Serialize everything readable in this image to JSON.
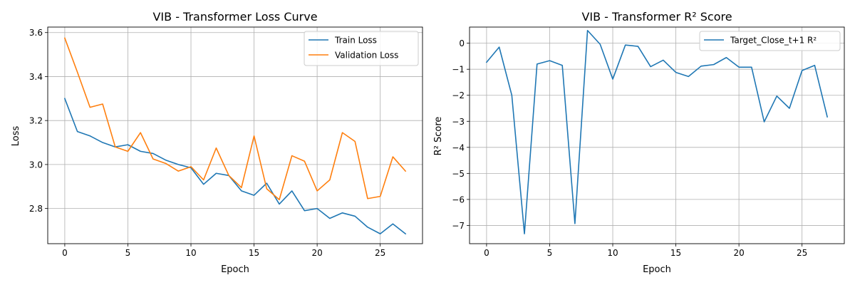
{
  "chart_data": [
    {
      "type": "line",
      "title": "VIB - Transformer Loss Curve",
      "xlabel": "Epoch",
      "ylabel": "Loss",
      "xlim": [
        -1.35,
        28.35
      ],
      "ylim": [
        2.64,
        3.625
      ],
      "xticks": [
        0,
        5,
        10,
        15,
        20,
        25
      ],
      "xtick_labels": [
        "0",
        "5",
        "10",
        "15",
        "20",
        "25"
      ],
      "yticks": [
        2.8,
        3.0,
        3.2,
        3.4,
        3.6
      ],
      "ytick_labels": [
        "2.8",
        "3.0",
        "3.2",
        "3.4",
        "3.6"
      ],
      "grid": true,
      "legend_position": "upper right",
      "x": [
        0,
        1,
        2,
        3,
        4,
        5,
        6,
        7,
        8,
        9,
        10,
        11,
        12,
        13,
        14,
        15,
        16,
        17,
        18,
        19,
        20,
        21,
        22,
        23,
        24,
        25,
        26,
        27
      ],
      "series": [
        {
          "name": "Train Loss",
          "color": "#1f77b4",
          "values": [
            3.3,
            3.15,
            3.13,
            3.1,
            3.08,
            3.09,
            3.06,
            3.05,
            3.02,
            3.0,
            2.985,
            2.91,
            2.96,
            2.95,
            2.88,
            2.86,
            2.915,
            2.82,
            2.88,
            2.79,
            2.8,
            2.755,
            2.78,
            2.765,
            2.715,
            2.685,
            2.73,
            2.685
          ]
        },
        {
          "name": "Validation Loss",
          "color": "#ff7f0e",
          "values": [
            3.575,
            3.42,
            3.26,
            3.275,
            3.08,
            3.06,
            3.145,
            3.025,
            3.005,
            2.97,
            2.99,
            2.93,
            3.075,
            2.95,
            2.895,
            3.13,
            2.89,
            2.84,
            3.04,
            3.015,
            2.88,
            2.93,
            3.145,
            3.105,
            2.845,
            2.855,
            3.035,
            2.97
          ]
        }
      ]
    },
    {
      "type": "line",
      "title": "VIB - Transformer R² Score",
      "xlabel": "Epoch",
      "ylabel": "R² Score",
      "xlim": [
        -1.35,
        28.35
      ],
      "ylim": [
        -7.7,
        0.62
      ],
      "xticks": [
        0,
        5,
        10,
        15,
        20,
        25
      ],
      "xtick_labels": [
        "0",
        "5",
        "10",
        "15",
        "20",
        "25"
      ],
      "yticks": [
        0,
        -1,
        -2,
        -3,
        -4,
        -5,
        -6,
        -7
      ],
      "ytick_labels": [
        "0",
        "−1",
        "−2",
        "−3",
        "−4",
        "−5",
        "−6",
        "−7"
      ],
      "grid": true,
      "legend_position": "upper right",
      "x": [
        0,
        1,
        2,
        3,
        4,
        5,
        6,
        7,
        8,
        9,
        10,
        11,
        12,
        13,
        14,
        15,
        16,
        17,
        18,
        19,
        20,
        21,
        22,
        23,
        24,
        25,
        26,
        27
      ],
      "series": [
        {
          "name": "Target_Close_t+1 R²",
          "color": "#1f77b4",
          "values": [
            -0.73,
            -0.15,
            -2.0,
            -7.32,
            -0.8,
            -0.67,
            -0.85,
            -6.93,
            0.49,
            -0.04,
            -1.38,
            -0.07,
            -0.12,
            -0.9,
            -0.65,
            -1.12,
            -1.28,
            -0.88,
            -0.82,
            -0.55,
            -0.92,
            -0.92,
            -3.02,
            -2.03,
            -2.5,
            -1.05,
            -0.85,
            -2.83
          ]
        }
      ]
    }
  ]
}
